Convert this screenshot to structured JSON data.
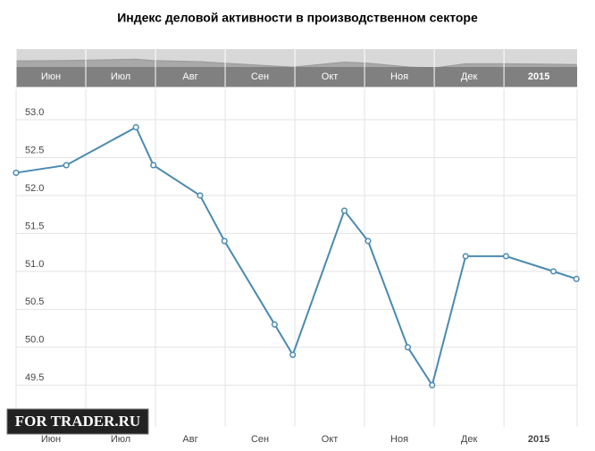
{
  "chart_data": {
    "type": "line",
    "title": "Индекс деловой активности в производственном секторе",
    "watermark": "FOR TRADER.RU",
    "x": [
      0,
      0.72,
      1.72,
      1.97,
      2.64,
      2.99,
      3.71,
      3.97,
      4.71,
      5.05,
      5.62,
      5.97,
      6.45,
      7.03,
      7.71,
      8.04
    ],
    "series": [
      {
        "color": "#4a8ab0",
        "values": [
          52.3,
          52.4,
          52.9,
          52.4,
          52.0,
          51.4,
          50.3,
          49.9,
          51.8,
          51.4,
          50.0,
          49.5,
          51.2,
          51.2,
          51.0,
          50.9
        ]
      }
    ],
    "xlim": [
      0,
      8.05
    ],
    "xticks": [
      {
        "value": 0,
        "label": "Июн"
      },
      {
        "value": 1,
        "label": "Июл"
      },
      {
        "value": 2,
        "label": "Авг"
      },
      {
        "value": 3,
        "label": "Сен"
      },
      {
        "value": 4,
        "label": "Окт"
      },
      {
        "value": 5,
        "label": "Ноя"
      },
      {
        "value": 6,
        "label": "Дек"
      },
      {
        "value": 7,
        "label": "2015"
      }
    ],
    "ylim": [
      48.95,
      53.4
    ],
    "yticks": [
      49.5,
      {
        "value": 50,
        "label": "50.0"
      },
      50.5,
      {
        "value": 51,
        "label": "51.0"
      },
      51.5,
      {
        "value": 52,
        "label": "52.0"
      },
      52.5,
      {
        "value": 53,
        "label": "53.0"
      }
    ],
    "grid": true
  }
}
